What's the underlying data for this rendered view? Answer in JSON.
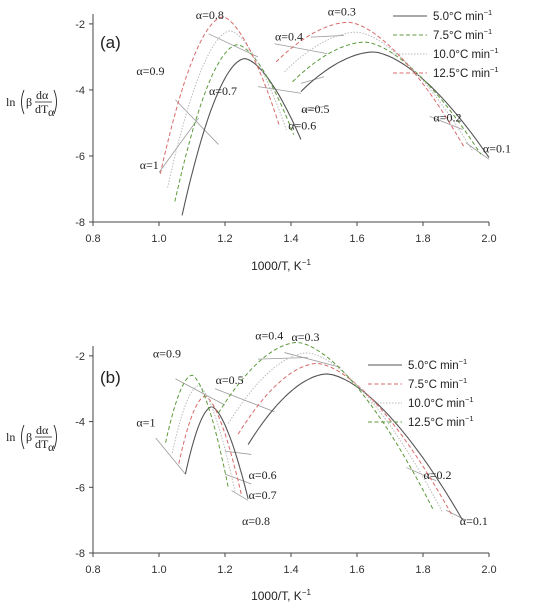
{
  "chart_data": [
    {
      "type": "line",
      "panel_label": "(a)",
      "xlabel": "1000/T, K",
      "xlabel_sup": "−1",
      "ylabel": {
        "prefix": "ln",
        "beta": "β",
        "num": "dα",
        "den": "dT",
        "den_sub": "α"
      },
      "xlim": [
        0.8,
        2.0
      ],
      "ylim": [
        -8,
        -1.7
      ],
      "xticks": [
        "0.8",
        "1.0",
        "1.2",
        "1.4",
        "1.6",
        "1.8",
        "2.0"
      ],
      "yticks": [
        "-2",
        "-4",
        "-6",
        "-8"
      ],
      "legend": "top-right",
      "series": [
        {
          "name": "5.0°C min",
          "color": "#555555",
          "dash": "none",
          "width": 1.1
        },
        {
          "name": "7.5°C min",
          "color": "#5c9a3c",
          "dash": "4,2.5",
          "width": 1.0
        },
        {
          "name": "10.0°C min",
          "color": "#bbbbbb",
          "dash": "1.5,1.5",
          "width": 1.0
        },
        {
          "name": "12.5°C min",
          "color": "#d86a6a",
          "dash": "4,2.5",
          "width": 1.0
        }
      ],
      "unit_sup": "−1",
      "peaks": [
        {
          "x0": 1.07,
          "y0": -7.8,
          "px": 1.26,
          "py": -3.05,
          "x1": 1.43,
          "y1": -5.5,
          "dx": -0.022,
          "dy": 0.42
        },
        {
          "x0": 1.43,
          "y0": -4.05,
          "px": 1.65,
          "py": -2.85,
          "x1": 2.0,
          "y1": -6.05,
          "dx": -0.025,
          "dy": 0.3
        }
      ],
      "isolines": [
        {
          "x1": 1.0,
          "y1": -6.5,
          "x2": 1.12,
          "y2": -4.85
        },
        {
          "x1": 1.05,
          "y1": -4.3,
          "x2": 1.18,
          "y2": -5.65
        },
        {
          "x1": 1.15,
          "y1": -2.3,
          "x2": 1.3,
          "y2": -3.0
        },
        {
          "x1": 1.3,
          "y1": -3.9,
          "x2": 1.43,
          "y2": -4.1
        },
        {
          "x1": 1.35,
          "y1": -2.6,
          "x2": 1.51,
          "y2": -2.9
        },
        {
          "x1": 1.46,
          "y1": -2.4,
          "x2": 1.56,
          "y2": -2.35
        },
        {
          "x1": 1.43,
          "y1": -3.8,
          "x2": 1.5,
          "y2": -3.6
        },
        {
          "x1": 1.43,
          "y1": -4.65,
          "x2": 1.5,
          "y2": -4.5
        },
        {
          "x1": 1.82,
          "y1": -4.8,
          "x2": 1.92,
          "y2": -5.2
        },
        {
          "x1": 1.93,
          "y1": -5.6,
          "x2": 2.0,
          "y2": -6.1
        }
      ],
      "annotations": [
        {
          "text": "α=0.8",
          "x": 1.16,
          "y": -1.85
        },
        {
          "text": "α=0.3",
          "x": 1.56,
          "y": -1.75
        },
        {
          "text": "α=0.4",
          "x": 1.4,
          "y": -2.5
        },
        {
          "text": "α=0.9",
          "x": 0.98,
          "y": -3.55
        },
        {
          "text": "α=0.7",
          "x": 1.2,
          "y": -4.15
        },
        {
          "text": "α=0.5",
          "x": 1.48,
          "y": -4.7
        },
        {
          "text": "α=0.6",
          "x": 1.44,
          "y": -5.2
        },
        {
          "text": "α=0.2",
          "x": 1.88,
          "y": -4.95
        },
        {
          "text": "α=1",
          "x": 0.99,
          "y": -6.4
        },
        {
          "text": "α=0.1",
          "x": 2.03,
          "y": -5.9
        }
      ]
    },
    {
      "type": "line",
      "panel_label": "(b)",
      "xlabel": "1000/T, K",
      "xlabel_sup": "−1",
      "ylabel": {
        "prefix": "ln",
        "beta": "β",
        "num": "dα",
        "den": "dT",
        "den_sub": "α"
      },
      "xlim": [
        0.8,
        2.0
      ],
      "ylim": [
        -8,
        -1.7
      ],
      "xticks": [
        "0.8",
        "1.0",
        "1.2",
        "1.4",
        "1.6",
        "1.8",
        "2.0"
      ],
      "yticks": [
        "-2",
        "-4",
        "-6",
        "-8"
      ],
      "legend": "top-right",
      "series": [
        {
          "name": "5.0°C min",
          "color": "#555555",
          "dash": "none",
          "width": 1.1
        },
        {
          "name": "7.5°C min",
          "color": "#d86a6a",
          "dash": "4,2.5",
          "width": 1.0
        },
        {
          "name": "10.0°C min",
          "color": "#bbbbbb",
          "dash": "1.5,1.5",
          "width": 1.0
        },
        {
          "name": "12.5°C min",
          "color": "#5c9a3c",
          "dash": "4,2.5",
          "width": 1.0
        }
      ],
      "unit_sup": "−1",
      "peaks": [
        {
          "x0": 1.08,
          "y0": -5.6,
          "px": 1.16,
          "py": -3.55,
          "x1": 1.27,
          "y1": -6.35,
          "dx": -0.02,
          "dy": 0.32
        },
        {
          "x0": 1.27,
          "y0": -4.7,
          "px": 1.51,
          "py": -2.55,
          "x1": 1.92,
          "y1": -7.0,
          "dx": -0.03,
          "dy": 0.32
        }
      ],
      "isolines": [
        {
          "x1": 0.99,
          "y1": -4.5,
          "x2": 1.08,
          "y2": -5.6
        },
        {
          "x1": 1.05,
          "y1": -2.7,
          "x2": 1.2,
          "y2": -3.5
        },
        {
          "x1": 1.17,
          "y1": -3.0,
          "x2": 1.35,
          "y2": -3.7
        },
        {
          "x1": 1.3,
          "y1": -2.1,
          "x2": 1.45,
          "y2": -2.05
        },
        {
          "x1": 1.38,
          "y1": -1.9,
          "x2": 1.55,
          "y2": -2.35
        },
        {
          "x1": 1.2,
          "y1": -4.9,
          "x2": 1.28,
          "y2": -5.0
        },
        {
          "x1": 1.2,
          "y1": -5.6,
          "x2": 1.28,
          "y2": -5.9
        },
        {
          "x1": 1.22,
          "y1": -6.1,
          "x2": 1.27,
          "y2": -6.4
        },
        {
          "x1": 1.75,
          "y1": -5.4,
          "x2": 1.84,
          "y2": -5.8
        },
        {
          "x1": 1.87,
          "y1": -6.7,
          "x2": 1.93,
          "y2": -7.0
        }
      ],
      "annotations": [
        {
          "text": "α=0.9",
          "x": 1.03,
          "y": -2.05
        },
        {
          "text": "α=0.4",
          "x": 1.34,
          "y": -1.5
        },
        {
          "text": "α=0.3",
          "x": 1.45,
          "y": -1.55
        },
        {
          "text": "α=0.5",
          "x": 1.22,
          "y": -2.85
        },
        {
          "text": "α=1",
          "x": 0.98,
          "y": -4.15
        },
        {
          "text": "α=0.6",
          "x": 1.32,
          "y": -5.75
        },
        {
          "text": "α=0.7",
          "x": 1.32,
          "y": -6.35
        },
        {
          "text": "α=0.8",
          "x": 1.3,
          "y": -7.15
        },
        {
          "text": "α=0.2",
          "x": 1.85,
          "y": -5.75
        },
        {
          "text": "α=0.1",
          "x": 1.96,
          "y": -7.15
        }
      ]
    }
  ]
}
